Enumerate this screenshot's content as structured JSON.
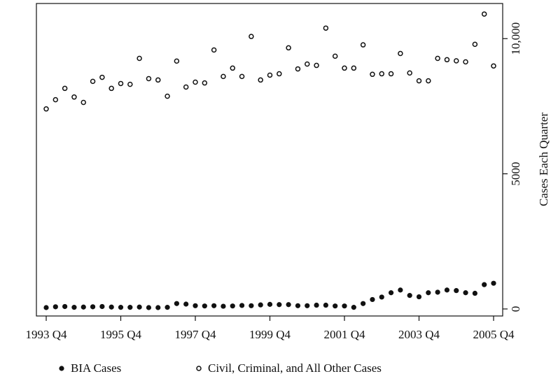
{
  "chart_data": {
    "type": "scatter",
    "categories": [
      "1993 Q4",
      null,
      null,
      null,
      null,
      null,
      null,
      null,
      "1995 Q4",
      null,
      null,
      null,
      null,
      null,
      null,
      null,
      "1997 Q4",
      null,
      null,
      null,
      null,
      null,
      null,
      null,
      "1999 Q4",
      null,
      null,
      null,
      null,
      null,
      null,
      null,
      "2001 Q4",
      null,
      null,
      null,
      null,
      null,
      null,
      null,
      "2003 Q4",
      null,
      null,
      null,
      null,
      null,
      null,
      null,
      "2005 Q4"
    ],
    "series": [
      {
        "name": "BIA Cases",
        "color": "#111111",
        "marker": "filled",
        "values": [
          50,
          80,
          90,
          60,
          70,
          80,
          90,
          70,
          60,
          60,
          70,
          50,
          50,
          60,
          200,
          180,
          120,
          110,
          120,
          100,
          110,
          130,
          120,
          150,
          170,
          160,
          160,
          120,
          120,
          140,
          140,
          110,
          110,
          60,
          200,
          350,
          440,
          600,
          700,
          500,
          450,
          600,
          620,
          700,
          680,
          600,
          580,
          900,
          950
        ]
      },
      {
        "name": "Civil, Criminal, and All Other Cases",
        "color": "#111111",
        "marker": "open",
        "values": [
          7400,
          7740,
          8160,
          7840,
          7640,
          8420,
          8570,
          8160,
          8340,
          8310,
          9270,
          8520,
          8470,
          7870,
          9170,
          8210,
          8390,
          8360,
          9580,
          8600,
          8910,
          8600,
          10080,
          8470,
          8650,
          8700,
          9660,
          8880,
          9060,
          9010,
          10390,
          9350,
          8910,
          8910,
          9770,
          8680,
          8700,
          8700,
          9450,
          8730,
          8440,
          8440,
          9270,
          9220,
          9180,
          9140,
          9790,
          10910,
          8990
        ]
      }
    ],
    "y_label": "Cases Each Quarter",
    "y_axis_side": "right",
    "ylim": [
      -260,
      11300
    ],
    "yticks": [
      0,
      5000,
      {
        "value": 10000,
        "label": "10,000"
      }
    ],
    "grid": false,
    "legend": "bottom"
  }
}
